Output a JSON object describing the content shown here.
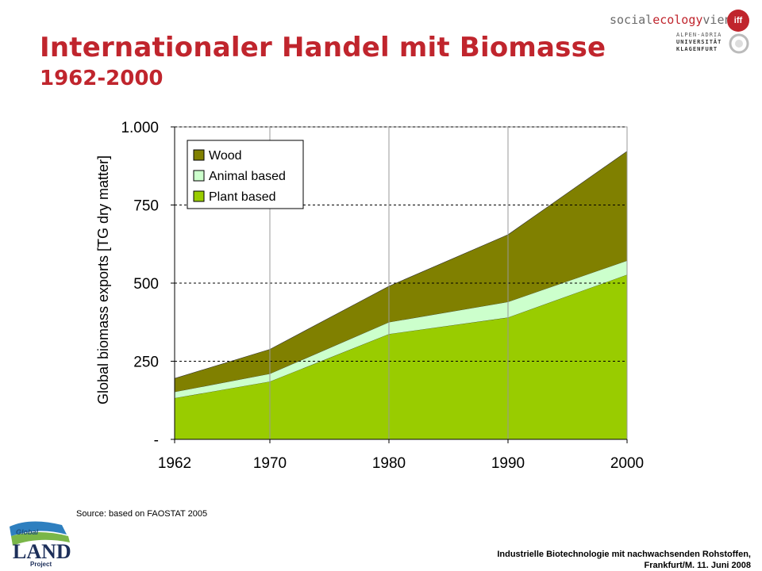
{
  "header": {
    "title": "Internationaler Handel mit Biomasse",
    "subtitle": "1962-2000"
  },
  "logos": {
    "sev_text_a": "social",
    "sev_text_b": "ecology",
    "sev_text_c": "vienna",
    "iff": "iff",
    "uni_line1": "ALPEN-ADRIA",
    "uni_line2": "UNIVERSITÄT",
    "uni_line3": "KLAGENFURT",
    "glp_line1": "Global",
    "glp_line2": "LAND",
    "glp_line3": "Project"
  },
  "source": "Source: based on FAOSTAT 2005",
  "footer": {
    "line1": "Industrielle Biotechnologie mit nachwachsenden Rohstoffen,",
    "line2": "Frankfurt/M. 11. Juni 2008"
  },
  "colors": {
    "title": "#c0252d",
    "wood": "#808000",
    "animal": "#ccffcc",
    "plant": "#99cc00",
    "gridline": "#000000"
  },
  "chart_data": {
    "type": "area",
    "stacked": true,
    "x": [
      1962,
      1970,
      1980,
      1990,
      2000
    ],
    "xticklabels": [
      "1962",
      "1970",
      "1980",
      "1990",
      "2000"
    ],
    "ylabel": "Global biomass exports [TG dry matter]",
    "ylim": [
      0,
      1000
    ],
    "yticks": [
      0,
      250,
      500,
      750,
      1000
    ],
    "yticklabels": [
      "-",
      "250",
      "500",
      "750",
      "1.000"
    ],
    "grid": "horizontal dashed",
    "legend_position": "top-left",
    "legend_order": [
      "Wood",
      "Animal based",
      "Plant based"
    ],
    "series": [
      {
        "name": "Plant based",
        "color": "#99cc00",
        "values": [
          132,
          185,
          337,
          390,
          527
        ]
      },
      {
        "name": "Animal based",
        "color": "#ccffcc",
        "values": [
          20,
          25,
          38,
          50,
          45
        ]
      },
      {
        "name": "Wood",
        "color": "#808000",
        "values": [
          43,
          78,
          115,
          215,
          350
        ]
      }
    ]
  }
}
